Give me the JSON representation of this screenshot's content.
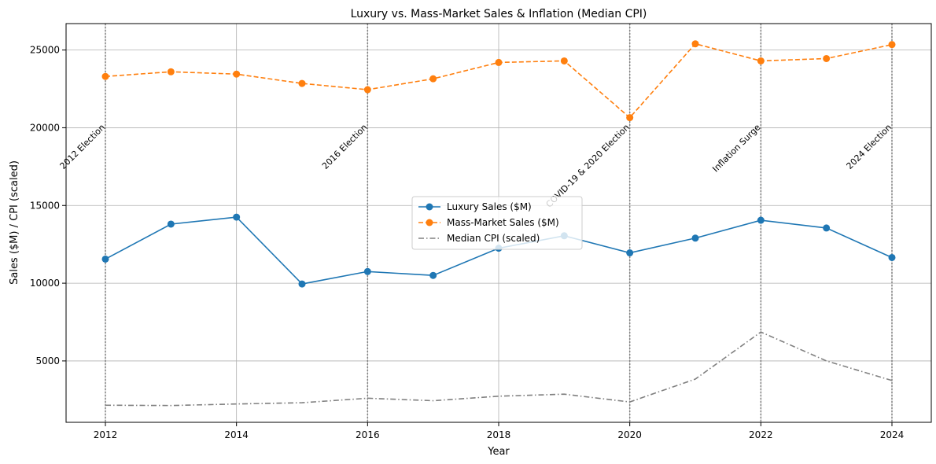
{
  "chart_data": {
    "type": "line",
    "title": "Luxury vs. Mass-Market Sales & Inflation (Median CPI)",
    "xlabel": "Year",
    "ylabel": "Sales ($M) / CPI (scaled)",
    "xlim": [
      2011.4,
      2024.6
    ],
    "ylim": [
      1050,
      26700
    ],
    "x_ticks": [
      2012,
      2014,
      2016,
      2018,
      2020,
      2022,
      2024
    ],
    "y_ticks": [
      5000,
      10000,
      15000,
      20000,
      25000
    ],
    "grid": true,
    "legend_position": "center",
    "x": [
      2012,
      2013,
      2014,
      2015,
      2016,
      2017,
      2018,
      2019,
      2020,
      2021,
      2022,
      2023,
      2024
    ],
    "series": [
      {
        "name": "Luxury Sales ($M)",
        "color": "#1f77b4",
        "line_style": "solid",
        "marker": "circle",
        "values": [
          11550,
          13800,
          14250,
          9950,
          10750,
          10500,
          12250,
          13050,
          11950,
          12900,
          14050,
          13550,
          11650
        ]
      },
      {
        "name": "Mass-Market Sales ($M)",
        "color": "#ff7f0e",
        "line_style": "dashed",
        "marker": "circle",
        "values": [
          23300,
          23600,
          23450,
          22850,
          22450,
          23150,
          24200,
          24300,
          20650,
          25400,
          24300,
          24450,
          25350
        ]
      },
      {
        "name": "Median CPI (scaled)",
        "color": "#808080",
        "line_style": "dashdot",
        "marker": "none",
        "values": [
          2150,
          2130,
          2230,
          2310,
          2600,
          2440,
          2730,
          2860,
          2360,
          3830,
          6860,
          5000,
          3740
        ]
      }
    ],
    "events": [
      {
        "x": 2012,
        "label": "2012 Election"
      },
      {
        "x": 2016,
        "label": "2016 Election"
      },
      {
        "x": 2020,
        "label": "COVID-19 & 2020 Election"
      },
      {
        "x": 2022,
        "label": "Inflation Surge"
      },
      {
        "x": 2024,
        "label": "2024 Election"
      }
    ],
    "event_line_color": "#808080",
    "event_label_y": 20000
  }
}
